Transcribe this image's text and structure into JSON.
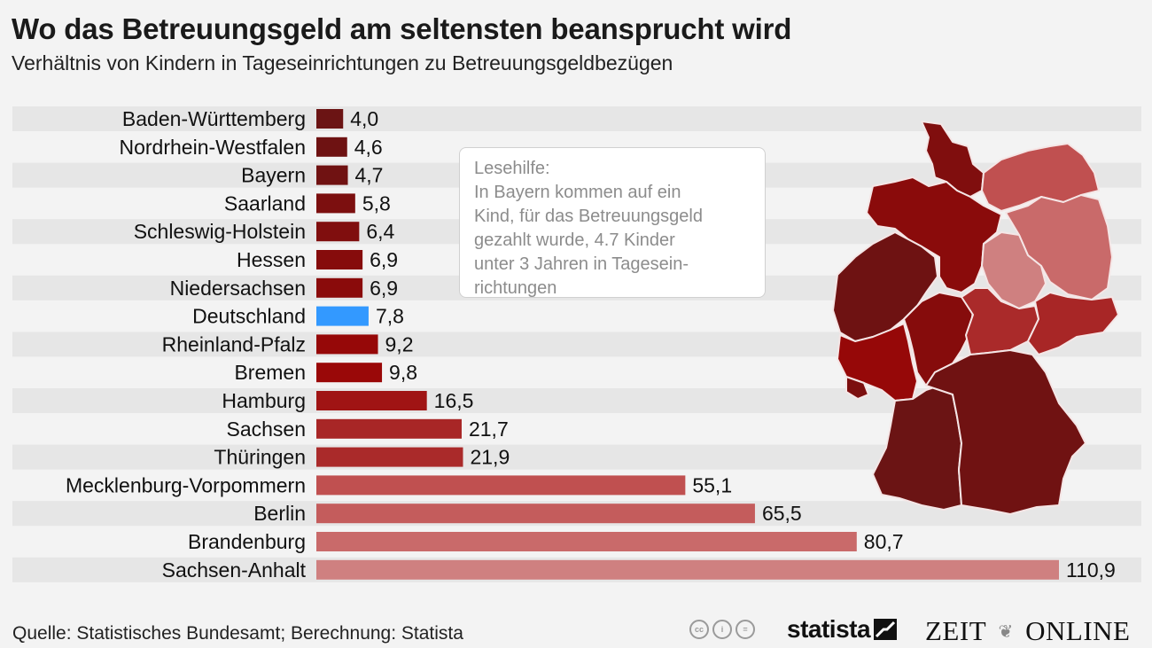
{
  "header": {
    "title": "Wo das Betreuungsgeld am seltensten beansprucht wird",
    "subtitle": "Verhältnis von Kindern in Tageseinrichtungen zu Betreuungsgeldbezügen"
  },
  "chart_data": {
    "type": "bar",
    "orientation": "horizontal",
    "title": "Wo das Betreuungsgeld am seltensten beansprucht wird",
    "subtitle": "Verhältnis von Kindern in Tageseinrichtungen zu Betreuungsgeldbezügen",
    "xlabel": "",
    "ylabel": "",
    "xlim": [
      0,
      110.9
    ],
    "grid": false,
    "legend": "none",
    "categories": [
      "Baden-Württemberg",
      "Nordrhein-Westfalen",
      "Bayern",
      "Saarland",
      "Schleswig-Holstein",
      "Hessen",
      "Niedersachsen",
      "Deutschland",
      "Rheinland-Pfalz",
      "Bremen",
      "Hamburg",
      "Sachsen",
      "Thüringen",
      "Mecklenburg-Vorpommern",
      "Berlin",
      "Brandenburg",
      "Sachsen-Anhalt"
    ],
    "values": [
      4.0,
      4.6,
      4.7,
      5.8,
      6.4,
      6.9,
      6.9,
      7.8,
      9.2,
      9.8,
      16.5,
      21.7,
      21.9,
      55.1,
      65.5,
      80.7,
      110.9
    ],
    "value_labels": [
      "4,0",
      "4,6",
      "4,7",
      "5,8",
      "6,4",
      "6,9",
      "6,9",
      "7,8",
      "9,2",
      "9,8",
      "16,5",
      "21,7",
      "21,9",
      "55,1",
      "65,5",
      "80,7",
      "110,9"
    ],
    "colors": [
      "#6b1414",
      "#6e1212",
      "#701212",
      "#7c0f0f",
      "#800e0e",
      "#860c0c",
      "#8a0b0b",
      "#3399ff",
      "#960808",
      "#9a0808",
      "#a01414",
      "#a82626",
      "#aa2a2a",
      "#c05050",
      "#c45c5c",
      "#c96a6a",
      "#cf8080"
    ],
    "highlight_category": "Deutschland",
    "highlight_color": "#3399ff"
  },
  "annotation": {
    "lines": [
      "Lesehilfe:",
      "In Bayern kommen auf ein",
      "Kind, für das Betreuungsgeld",
      "gezahlt wurde, 4.7 Kinder",
      "unter 3 Jahren in Tagesein-",
      "richtungen"
    ]
  },
  "map": {
    "type": "choropleth",
    "region": "Deutschland",
    "states": [
      {
        "name": "Schleswig-Holstein",
        "color": "#800e0e"
      },
      {
        "name": "Hamburg",
        "color": "#a01414"
      },
      {
        "name": "Mecklenburg-Vorpommern",
        "color": "#c05050"
      },
      {
        "name": "Bremen",
        "color": "#9a0808"
      },
      {
        "name": "Niedersachsen",
        "color": "#8a0b0b"
      },
      {
        "name": "Berlin",
        "color": "#c45c5c"
      },
      {
        "name": "Brandenburg",
        "color": "#c96a6a"
      },
      {
        "name": "Sachsen-Anhalt",
        "color": "#cf8080"
      },
      {
        "name": "Nordrhein-Westfalen",
        "color": "#6e1212"
      },
      {
        "name": "Hessen",
        "color": "#860c0c"
      },
      {
        "name": "Thüringen",
        "color": "#aa2a2a"
      },
      {
        "name": "Sachsen",
        "color": "#a82626"
      },
      {
        "name": "Rheinland-Pfalz",
        "color": "#960808"
      },
      {
        "name": "Saarland",
        "color": "#7c0f0f"
      },
      {
        "name": "Baden-Württemberg",
        "color": "#6b1414"
      },
      {
        "name": "Bayern",
        "color": "#701212"
      }
    ]
  },
  "footer": {
    "source": "Quelle: Statistisches Bundesamt; Berechnung: Statista",
    "license_icons": [
      "cc-icon",
      "by-icon",
      "nd-icon"
    ],
    "license_glyphs": [
      "cc",
      "i",
      "="
    ],
    "brand_statista": "statista",
    "brand_zeit_left": "ZEIT",
    "brand_zeit_right": "ONLINE"
  }
}
